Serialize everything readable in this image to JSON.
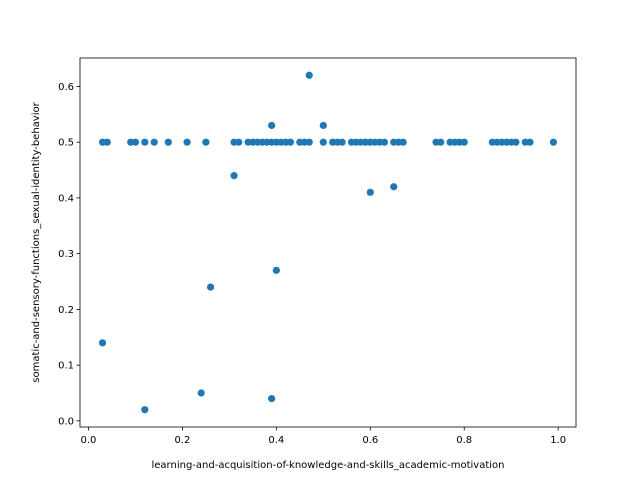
{
  "chart_data": {
    "type": "scatter",
    "xlabel": "learning-and-acquisition-of-knowledge-and-skills_academic-motivation",
    "ylabel": "somatic-and-sensory-functions_sexual-identity-behavior",
    "xlim": [
      -0.018,
      1.038
    ],
    "ylim": [
      -0.011,
      0.651
    ],
    "xticks": [
      0.0,
      0.2,
      0.4,
      0.6,
      0.8,
      1.0
    ],
    "xtick_labels": [
      "0.0",
      "0.2",
      "0.4",
      "0.6",
      "0.8",
      "1.0"
    ],
    "yticks": [
      0.0,
      0.1,
      0.2,
      0.3,
      0.4,
      0.5,
      0.6
    ],
    "ytick_labels": [
      "0.0",
      "0.1",
      "0.2",
      "0.3",
      "0.4",
      "0.5",
      "0.6"
    ],
    "marker_color": "#1f77b4",
    "grid": false,
    "points": [
      {
        "x": 0.03,
        "y": 0.5
      },
      {
        "x": 0.04,
        "y": 0.5
      },
      {
        "x": 0.09,
        "y": 0.5
      },
      {
        "x": 0.1,
        "y": 0.5
      },
      {
        "x": 0.12,
        "y": 0.5
      },
      {
        "x": 0.14,
        "y": 0.5
      },
      {
        "x": 0.17,
        "y": 0.5
      },
      {
        "x": 0.21,
        "y": 0.5
      },
      {
        "x": 0.25,
        "y": 0.5
      },
      {
        "x": 0.31,
        "y": 0.5
      },
      {
        "x": 0.32,
        "y": 0.5
      },
      {
        "x": 0.34,
        "y": 0.5
      },
      {
        "x": 0.35,
        "y": 0.5
      },
      {
        "x": 0.36,
        "y": 0.5
      },
      {
        "x": 0.37,
        "y": 0.5
      },
      {
        "x": 0.38,
        "y": 0.5
      },
      {
        "x": 0.39,
        "y": 0.5
      },
      {
        "x": 0.4,
        "y": 0.5
      },
      {
        "x": 0.41,
        "y": 0.5
      },
      {
        "x": 0.42,
        "y": 0.5
      },
      {
        "x": 0.43,
        "y": 0.5
      },
      {
        "x": 0.45,
        "y": 0.5
      },
      {
        "x": 0.46,
        "y": 0.5
      },
      {
        "x": 0.47,
        "y": 0.5
      },
      {
        "x": 0.5,
        "y": 0.5
      },
      {
        "x": 0.52,
        "y": 0.5
      },
      {
        "x": 0.53,
        "y": 0.5
      },
      {
        "x": 0.54,
        "y": 0.5
      },
      {
        "x": 0.56,
        "y": 0.5
      },
      {
        "x": 0.57,
        "y": 0.5
      },
      {
        "x": 0.58,
        "y": 0.5
      },
      {
        "x": 0.59,
        "y": 0.5
      },
      {
        "x": 0.6,
        "y": 0.5
      },
      {
        "x": 0.61,
        "y": 0.5
      },
      {
        "x": 0.62,
        "y": 0.5
      },
      {
        "x": 0.63,
        "y": 0.5
      },
      {
        "x": 0.65,
        "y": 0.5
      },
      {
        "x": 0.66,
        "y": 0.5
      },
      {
        "x": 0.67,
        "y": 0.5
      },
      {
        "x": 0.74,
        "y": 0.5
      },
      {
        "x": 0.75,
        "y": 0.5
      },
      {
        "x": 0.77,
        "y": 0.5
      },
      {
        "x": 0.78,
        "y": 0.5
      },
      {
        "x": 0.79,
        "y": 0.5
      },
      {
        "x": 0.8,
        "y": 0.5
      },
      {
        "x": 0.86,
        "y": 0.5
      },
      {
        "x": 0.87,
        "y": 0.5
      },
      {
        "x": 0.88,
        "y": 0.5
      },
      {
        "x": 0.89,
        "y": 0.5
      },
      {
        "x": 0.9,
        "y": 0.5
      },
      {
        "x": 0.91,
        "y": 0.5
      },
      {
        "x": 0.93,
        "y": 0.5
      },
      {
        "x": 0.94,
        "y": 0.5
      },
      {
        "x": 0.99,
        "y": 0.5
      },
      {
        "x": 0.47,
        "y": 0.62
      },
      {
        "x": 0.39,
        "y": 0.53
      },
      {
        "x": 0.5,
        "y": 0.53
      },
      {
        "x": 0.31,
        "y": 0.44
      },
      {
        "x": 0.6,
        "y": 0.41
      },
      {
        "x": 0.65,
        "y": 0.42
      },
      {
        "x": 0.4,
        "y": 0.27
      },
      {
        "x": 0.26,
        "y": 0.24
      },
      {
        "x": 0.03,
        "y": 0.14
      },
      {
        "x": 0.24,
        "y": 0.05
      },
      {
        "x": 0.12,
        "y": 0.02
      },
      {
        "x": 0.39,
        "y": 0.04
      }
    ]
  }
}
